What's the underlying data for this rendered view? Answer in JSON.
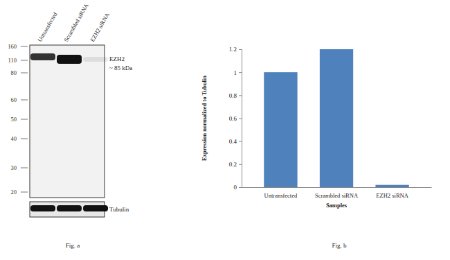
{
  "blot": {
    "lanes": [
      "Untransfected",
      "Scrambled siRNA",
      "EZH2 siRNA"
    ],
    "markers": [
      160,
      110,
      80,
      60,
      50,
      40,
      30,
      20
    ],
    "band_label": "EZH2",
    "band_size": "~ 85 kDa",
    "loading_control": "Tubulin",
    "caption": "Fig. a"
  },
  "chart_data": {
    "type": "bar",
    "caption": "Fig. b",
    "categories": [
      "Untransfected",
      "Scrambled siRNA",
      "EZH2 siRNA"
    ],
    "values": [
      1,
      1.2,
      0.02
    ],
    "color": "#4f81bd",
    "ylim": [
      0,
      1.2
    ],
    "yticks": [
      0,
      0.2,
      0.4,
      0.6,
      0.8,
      1,
      1.2
    ],
    "x_label": "Samples",
    "y_label": "Expression normalized to Tubulin"
  }
}
